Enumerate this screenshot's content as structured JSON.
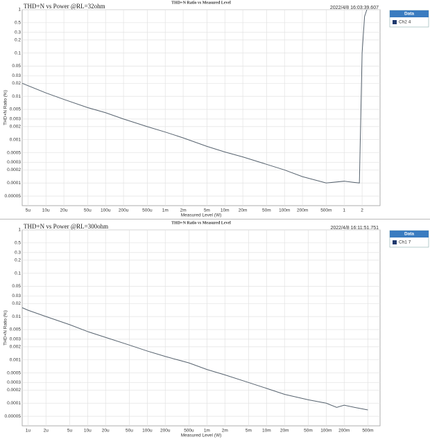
{
  "chart_data": [
    {
      "type": "line",
      "title": "THD+N Ratio vs Measured Level",
      "annotation": "THD+N  vs Power @RL=32ohm",
      "timestamp": "2022/4/8 16:03:39.607",
      "xlabel": "Measured Level (W)",
      "ylabel": "THD+N Ratio (%)",
      "log_x": true,
      "log_y": true,
      "grid": true,
      "legend": "right",
      "legend_title": "Data",
      "x": [
        4e-06,
        1e-05,
        2e-05,
        5e-05,
        0.0001,
        0.0002,
        0.0005,
        0.001,
        0.002,
        0.005,
        0.01,
        0.02,
        0.05,
        0.1,
        0.2,
        0.5,
        1,
        1.8,
        2,
        2.2,
        2.4
      ],
      "series": [
        {
          "name": "Ch2 4",
          "color": "#56626e",
          "values": [
            0.02,
            0.012,
            0.0085,
            0.0055,
            0.0042,
            0.003,
            0.002,
            0.0015,
            0.0011,
            0.0007,
            0.00052,
            0.0004,
            0.00027,
            0.0002,
            0.00014,
            0.0001,
            0.00011,
            0.0001,
            0.1,
            0.7,
            1
          ]
        }
      ],
      "xlim": [
        4e-06,
        4
      ],
      "ylim": [
        3e-05,
        1
      ],
      "xticks": [
        {
          "value": 5e-06,
          "label": "5u"
        },
        {
          "value": 1e-05,
          "label": "10u"
        },
        {
          "value": 2e-05,
          "label": "20u"
        },
        {
          "value": 5e-05,
          "label": "50u"
        },
        {
          "value": 0.0001,
          "label": "100u"
        },
        {
          "value": 0.0002,
          "label": "200u"
        },
        {
          "value": 0.0005,
          "label": "500u"
        },
        {
          "value": 0.001,
          "label": "1m"
        },
        {
          "value": 0.002,
          "label": "2m"
        },
        {
          "value": 0.005,
          "label": "5m"
        },
        {
          "value": 0.01,
          "label": "10m"
        },
        {
          "value": 0.02,
          "label": "20m"
        },
        {
          "value": 0.05,
          "label": "50m"
        },
        {
          "value": 0.1,
          "label": "100m"
        },
        {
          "value": 0.2,
          "label": "200m"
        },
        {
          "value": 0.5,
          "label": "500m"
        },
        1,
        2
      ],
      "yticks": [
        1,
        0.5,
        0.3,
        0.2,
        0.1,
        0.05,
        0.03,
        0.02,
        0.01,
        0.005,
        0.003,
        0.002,
        0.001,
        0.0005,
        0.0003,
        0.0002,
        0.0001,
        5e-05
      ]
    },
    {
      "type": "line",
      "title": "THD+N Ratio vs Measured Level",
      "annotation": "THD+N  vs Power @RL=300ohm",
      "timestamp": "2022/4/8 16:11:51.751",
      "xlabel": "Measured Level (W)",
      "ylabel": "THD+N Ratio (%)",
      "log_x": true,
      "log_y": true,
      "grid": true,
      "legend": "right",
      "legend_title": "Data",
      "x": [
        8e-07,
        1e-06,
        2e-06,
        5e-06,
        1e-05,
        2e-05,
        5e-05,
        0.0001,
        0.0002,
        0.0005,
        0.001,
        0.002,
        0.005,
        0.01,
        0.02,
        0.05,
        0.1,
        0.15,
        0.2,
        0.3,
        0.5
      ],
      "series": [
        {
          "name": "Ch1 7",
          "color": "#56626e",
          "values": [
            0.016,
            0.014,
            0.01,
            0.0065,
            0.0045,
            0.0033,
            0.0022,
            0.0016,
            0.0012,
            0.00085,
            0.0006,
            0.00045,
            0.0003,
            0.00022,
            0.00016,
            0.00012,
            0.0001,
            8e-05,
            9e-05,
            8e-05,
            7e-05
          ]
        }
      ],
      "xlim": [
        8e-07,
        0.8
      ],
      "ylim": [
        3e-05,
        1
      ],
      "xticks": [
        {
          "value": 1e-06,
          "label": "1u"
        },
        {
          "value": 2e-06,
          "label": "2u"
        },
        {
          "value": 5e-06,
          "label": "5u"
        },
        {
          "value": 1e-05,
          "label": "10u"
        },
        {
          "value": 2e-05,
          "label": "20u"
        },
        {
          "value": 5e-05,
          "label": "50u"
        },
        {
          "value": 0.0001,
          "label": "100u"
        },
        {
          "value": 0.0002,
          "label": "200u"
        },
        {
          "value": 0.0005,
          "label": "500u"
        },
        {
          "value": 0.001,
          "label": "1m"
        },
        {
          "value": 0.002,
          "label": "2m"
        },
        {
          "value": 0.005,
          "label": "5m"
        },
        {
          "value": 0.01,
          "label": "10m"
        },
        {
          "value": 0.02,
          "label": "20m"
        },
        {
          "value": 0.05,
          "label": "50m"
        },
        {
          "value": 0.1,
          "label": "100m"
        },
        {
          "value": 0.2,
          "label": "200m"
        },
        {
          "value": 0.5,
          "label": "500m"
        }
      ],
      "yticks": [
        1,
        0.5,
        0.3,
        0.2,
        0.1,
        0.05,
        0.03,
        0.02,
        0.01,
        0.005,
        0.003,
        0.002,
        0.001,
        0.0005,
        0.0003,
        0.0002,
        0.0001,
        5e-05
      ]
    }
  ]
}
